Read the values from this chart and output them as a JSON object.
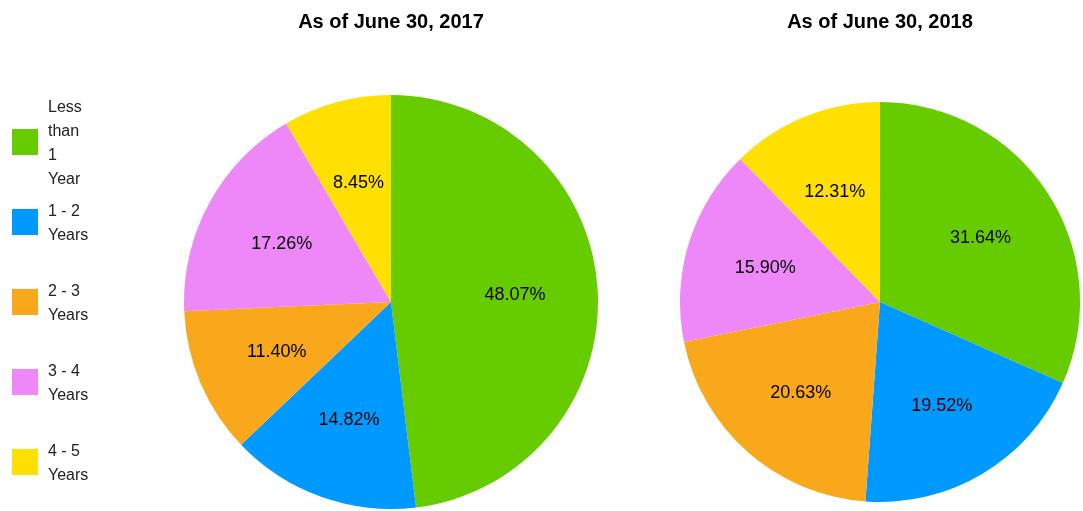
{
  "chart_data": [
    {
      "type": "pie",
      "title": "As of June 30, 2017",
      "categories": [
        "Less than 1 Year",
        "1 - 2 Years",
        "2 - 3 Years",
        "3 - 4 Years",
        "4 - 5 Years"
      ],
      "values": [
        48.07,
        14.82,
        11.4,
        17.26,
        8.45
      ],
      "value_labels": [
        "48.07%",
        "14.82%",
        "11.40%",
        "17.26%",
        "8.45%"
      ],
      "colors": [
        "#66cc00",
        "#0099ff",
        "#f9a81c",
        "#ee88f8",
        "#ffe000"
      ],
      "legend": "left"
    },
    {
      "type": "pie",
      "title": "As of June 30, 2018",
      "categories": [
        null,
        null,
        null,
        null,
        null
      ],
      "values": [
        31.64,
        19.52,
        20.63,
        15.9,
        12.31
      ],
      "value_labels": [
        "31.64%",
        "19.52%",
        "20.63%",
        "15.90%",
        "12.31%"
      ],
      "colors": [
        "#66cc00",
        "#0099ff",
        "#f9a81c",
        "#ee88f8",
        "#ffe000"
      ]
    }
  ]
}
